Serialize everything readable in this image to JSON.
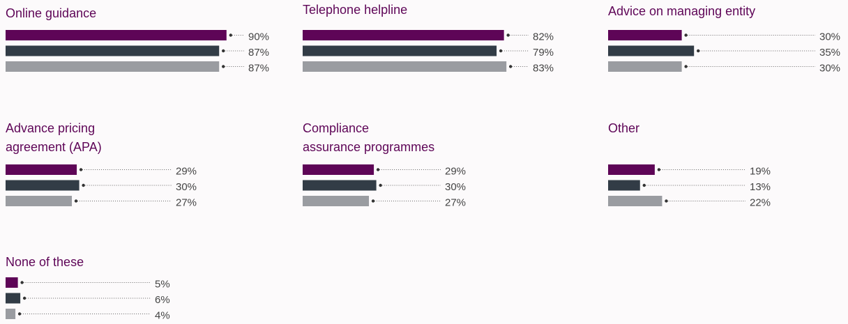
{
  "chart_data": [
    {
      "type": "bar",
      "title": [
        "Online guidance"
      ],
      "values": [
        90,
        87,
        87
      ],
      "value_labels": [
        "90%",
        "87%",
        "87%"
      ],
      "colors": [
        "#5e0557",
        "#323c46",
        "#9a9ca1"
      ]
    },
    {
      "type": "bar",
      "title": [
        "Telephone helpline"
      ],
      "values": [
        82,
        79,
        83
      ],
      "value_labels": [
        "82%",
        "79%",
        "83%"
      ],
      "colors": [
        "#5e0557",
        "#323c46",
        "#9a9ca1"
      ]
    },
    {
      "type": "bar",
      "title": [
        "Advice on managing entity"
      ],
      "values": [
        30,
        35,
        30
      ],
      "value_labels": [
        "30%",
        "35%",
        "30%"
      ],
      "colors": [
        "#5e0557",
        "#323c46",
        "#9a9ca1"
      ]
    },
    {
      "type": "bar",
      "title": [
        "Advance pricing",
        "agreement (APA)"
      ],
      "values": [
        29,
        30,
        27
      ],
      "value_labels": [
        "29%",
        "30%",
        "27%"
      ],
      "colors": [
        "#5e0557",
        "#323c46",
        "#9a9ca1"
      ]
    },
    {
      "type": "bar",
      "title": [
        "Compliance",
        "assurance programmes"
      ],
      "values": [
        29,
        30,
        27
      ],
      "value_labels": [
        "29%",
        "30%",
        "27%"
      ],
      "colors": [
        "#5e0557",
        "#323c46",
        "#9a9ca1"
      ]
    },
    {
      "type": "bar",
      "title": [
        "Other"
      ],
      "values": [
        19,
        13,
        22
      ],
      "value_labels": [
        "19%",
        "13%",
        "22%"
      ],
      "colors": [
        "#5e0557",
        "#323c46",
        "#9a9ca1"
      ]
    },
    {
      "type": "bar",
      "title": [
        "None of these"
      ],
      "values": [
        5,
        6,
        4
      ],
      "value_labels": [
        "5%",
        "6%",
        "4%"
      ],
      "colors": [
        "#5e0557",
        "#323c46",
        "#9a9ca1"
      ]
    }
  ]
}
